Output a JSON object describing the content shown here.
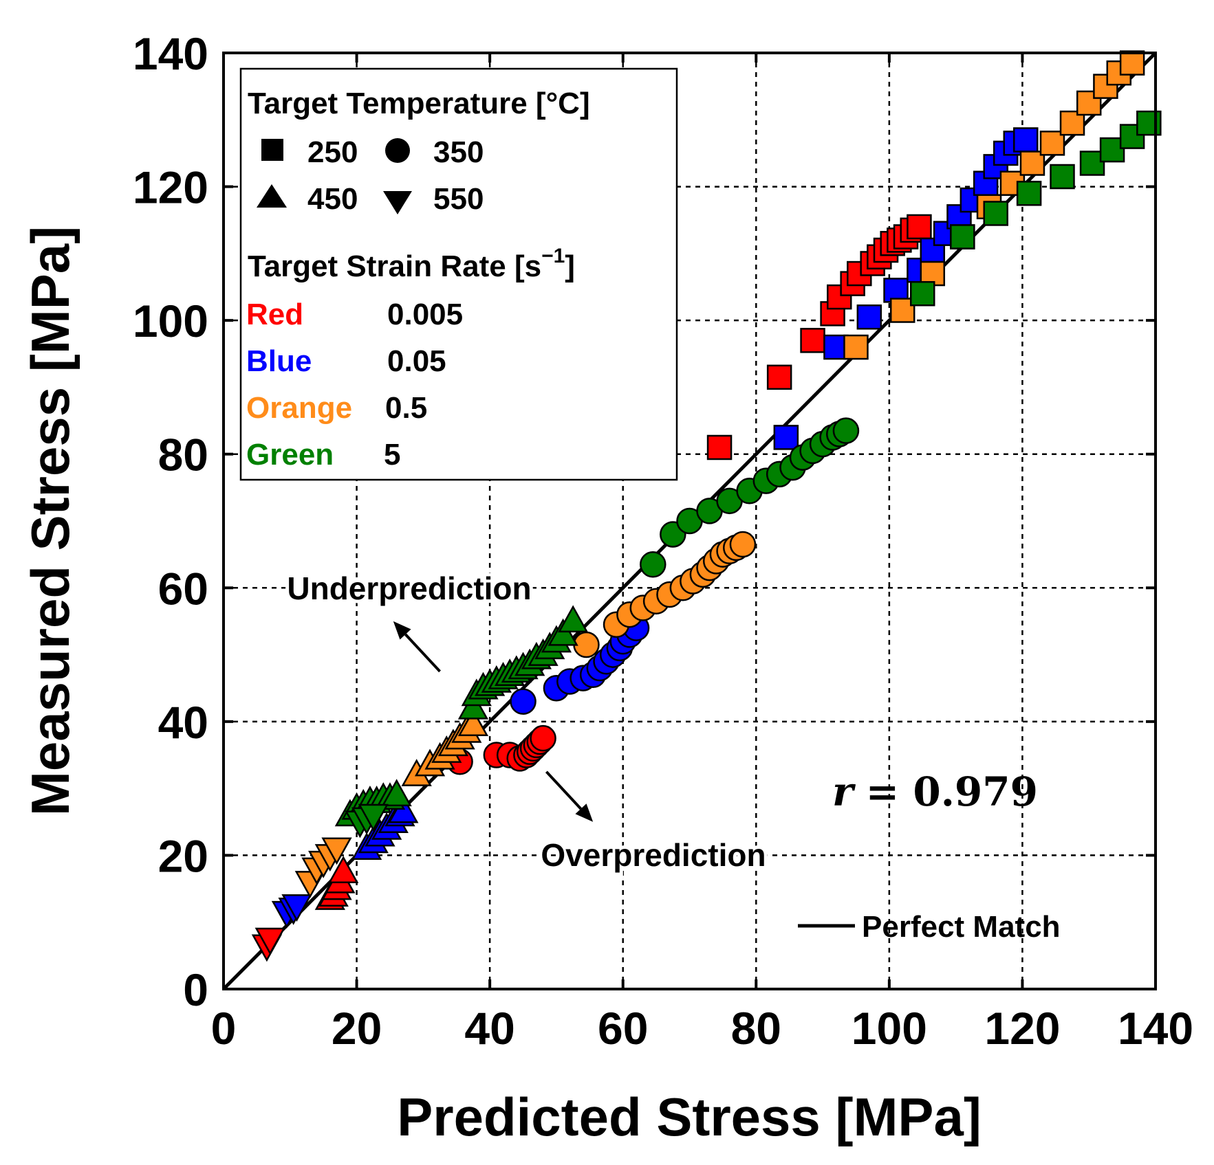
{
  "chart_data": {
    "type": "scatter",
    "xlabel": "Predicted Stress [MPa]",
    "ylabel": "Measured Stress [MPa]",
    "xlim": [
      0,
      140
    ],
    "ylim": [
      0,
      140
    ],
    "xticks": [
      "0",
      "20",
      "40",
      "60",
      "80",
      "100",
      "120",
      "140"
    ],
    "yticks": [
      "0",
      "20",
      "40",
      "60",
      "80",
      "100",
      "120",
      "140"
    ],
    "grid": true,
    "colors": {
      "red": "#ff0000",
      "blue": "#0000ff",
      "orange": "#ff8c1a",
      "green": "#008000"
    },
    "legend": {
      "temperature_title": "Target Temperature [",
      "temperature_unit": "°C",
      "temperature_close": "]",
      "temperatures": [
        {
          "marker": "square",
          "label": "250"
        },
        {
          "marker": "circle",
          "label": "350"
        },
        {
          "marker": "triangle-up",
          "label": "450"
        },
        {
          "marker": "triangle-down",
          "label": "550"
        }
      ],
      "strain_rate_title": "Target Strain Rate [s",
      "strain_rate_exp": "−1",
      "strain_rate_close": "]",
      "strain_rates": [
        {
          "color_name": "Red",
          "color": "red",
          "value": "0.005"
        },
        {
          "color_name": "Blue",
          "color": "blue",
          "value": "0.05"
        },
        {
          "color_name": "Orange",
          "color": "orange",
          "value": "0.5"
        },
        {
          "color_name": "Green",
          "color": "green",
          "value": "5"
        }
      ],
      "line_label": "Perfect Match",
      "line_legend_position": "bottom-right",
      "marker_legend_position": "top-left"
    },
    "reference_line": {
      "name": "Perfect Match",
      "x": [
        0,
        140
      ],
      "y": [
        0,
        140
      ]
    },
    "annotations": {
      "underprediction": "Underprediction",
      "overprediction": "Overprediction",
      "r_symbol": "r",
      "r_value": "= 0.979"
    },
    "annotation_arrows": [
      {
        "name": "underprediction",
        "from": [
          32.5,
          47.5
        ],
        "to": [
          25.5,
          55.0
        ]
      },
      {
        "name": "overprediction",
        "from": [
          48.5,
          32.5
        ],
        "to": [
          55.5,
          25.0
        ]
      }
    ],
    "series": [
      {
        "name": "250 °C / 0.005 s⁻¹",
        "marker": "square",
        "color": "red",
        "x": [
          74.5,
          83.5,
          88.5,
          91.5,
          92.5,
          94.5,
          95.5,
          97.5,
          98.5,
          99.5,
          100.5,
          101.5,
          102.5,
          103.5,
          104.5
        ],
        "y": [
          81,
          91.5,
          97,
          101,
          103.5,
          105.5,
          107,
          108.5,
          109.5,
          110.5,
          111.5,
          112,
          112.5,
          113.5,
          114
        ]
      },
      {
        "name": "250 °C / 0.05 s⁻¹",
        "marker": "square",
        "color": "blue",
        "x": [
          84.5,
          92,
          97,
          101,
          104.5,
          106.5,
          108.5,
          110.5,
          112.5,
          114.5,
          116,
          117.5,
          119,
          120.5
        ],
        "y": [
          82.5,
          96,
          100.5,
          104.5,
          107.5,
          110.5,
          113,
          115.5,
          118,
          120.5,
          123,
          125,
          126.5,
          127
        ]
      },
      {
        "name": "250 °C / 0.5 s⁻¹",
        "marker": "square",
        "color": "orange",
        "x": [
          95,
          102,
          106.5,
          111,
          115,
          118.5,
          121.5,
          124.5,
          127.5,
          130,
          132.5,
          134.5,
          136.5
        ],
        "y": [
          96,
          101.5,
          107,
          112.5,
          117,
          120.5,
          123.5,
          126.5,
          129.5,
          132.5,
          135,
          137,
          138.5
        ]
      },
      {
        "name": "250 °C / 5 s⁻¹",
        "marker": "square",
        "color": "green",
        "x": [
          105,
          111,
          116,
          121,
          126,
          130.5,
          133.5,
          136.5,
          139
        ],
        "y": [
          104,
          112.5,
          116,
          119,
          121.5,
          123.5,
          125.5,
          127.5,
          129.5
        ]
      },
      {
        "name": "350 °C / 0.005 s⁻¹",
        "marker": "circle",
        "color": "red",
        "x": [
          35.5,
          41,
          43,
          44.5,
          45.5,
          46,
          46.5,
          47,
          47.5,
          48
        ],
        "y": [
          34,
          35,
          35,
          34.5,
          35,
          35.5,
          36,
          36.5,
          37,
          37.5
        ]
      },
      {
        "name": "350 °C / 0.05 s⁻¹",
        "marker": "circle",
        "color": "blue",
        "x": [
          45,
          50,
          52,
          54,
          55.5,
          56.5,
          57.5,
          58.5,
          59.5,
          60,
          61,
          62
        ],
        "y": [
          43,
          45,
          46,
          46.5,
          47,
          48,
          49,
          50,
          51,
          52,
          53,
          54
        ]
      },
      {
        "name": "350 °C / 0.5 s⁻¹",
        "marker": "circle",
        "color": "orange",
        "x": [
          54.5,
          59,
          61,
          63,
          65,
          67,
          69,
          70.5,
          72,
          73,
          74,
          75,
          76,
          77,
          78
        ],
        "y": [
          51.5,
          54.5,
          56,
          57,
          58,
          59,
          60,
          61,
          62,
          63,
          64,
          65,
          65.5,
          66,
          66.5
        ]
      },
      {
        "name": "350 °C / 5 s⁻¹",
        "marker": "circle",
        "color": "green",
        "x": [
          64.5,
          67.5,
          70,
          73,
          76,
          79,
          81.5,
          83.5,
          85.5,
          87,
          88.5,
          90,
          91.5,
          92.5,
          93.5
        ],
        "y": [
          63.5,
          68,
          70,
          71.5,
          73,
          74.5,
          76,
          77,
          78,
          79.5,
          80.5,
          81.5,
          82.5,
          83,
          83.5
        ]
      },
      {
        "name": "450 °C / 0.005 s⁻¹",
        "marker": "triangle-up",
        "color": "red",
        "x": [
          16,
          16.5,
          17,
          17.5,
          18
        ],
        "y": [
          13.5,
          14,
          15,
          16,
          17.5
        ]
      },
      {
        "name": "450 °C / 0.05 s⁻¹",
        "marker": "triangle-up",
        "color": "blue",
        "x": [
          21.5,
          22.5,
          23.5,
          24.5,
          25.5,
          26.5,
          27
        ],
        "y": [
          21,
          22,
          23,
          24,
          25,
          26,
          26.5
        ]
      },
      {
        "name": "450 °C / 0.5 s⁻¹",
        "marker": "triangle-up",
        "color": "orange",
        "x": [
          29,
          31,
          32.5,
          33.5,
          34.5,
          35.5,
          36.5,
          37.5
        ],
        "y": [
          32,
          33.5,
          34.5,
          35.5,
          36.5,
          37.5,
          38.5,
          39.5
        ]
      },
      {
        "name": "450 °C / 5 s⁻¹",
        "marker": "triangle-up",
        "color": "green",
        "x": [
          19,
          20,
          21,
          22,
          23,
          24,
          25,
          26,
          37.5,
          38,
          39,
          40,
          41,
          42,
          43,
          44,
          45,
          46,
          47,
          48,
          49,
          50,
          51,
          52.5
        ],
        "y": [
          26,
          27,
          27.5,
          28,
          28,
          28.5,
          28.5,
          29,
          42,
          44,
          45,
          45.5,
          46,
          46.5,
          47,
          47.5,
          48,
          48.5,
          49.5,
          50,
          51,
          52,
          53,
          55
        ]
      },
      {
        "name": "550 °C / 0.005 s⁻¹",
        "marker": "triangle-down",
        "color": "red",
        "x": [
          6.5,
          7
        ],
        "y": [
          6.5,
          7.5
        ]
      },
      {
        "name": "550 °C / 0.05 s⁻¹",
        "marker": "triangle-down",
        "color": "blue",
        "x": [
          9.5,
          10.5,
          11
        ],
        "y": [
          11.5,
          12,
          12.5
        ]
      },
      {
        "name": "550 °C / 0.5 s⁻¹",
        "marker": "triangle-down",
        "color": "orange",
        "x": [
          13,
          14,
          15,
          16,
          17
        ],
        "y": [
          16,
          18,
          19,
          20,
          21
        ]
      },
      {
        "name": "550 °C / 5 s⁻¹",
        "marker": "triangle-down",
        "color": "green",
        "x": [
          20.5,
          21.5,
          22.5
        ],
        "y": [
          25,
          25.5,
          26
        ]
      }
    ]
  }
}
